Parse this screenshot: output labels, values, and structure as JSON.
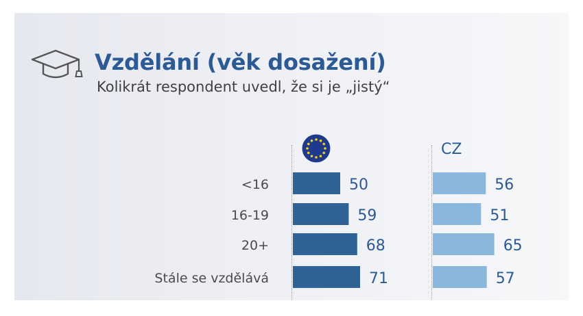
{
  "header": {
    "title": "Vzdělání (věk dosažení)",
    "subtitle": "Kolikrát respondent uvedl, že si je „jistý“",
    "icon": "graduation-cap-icon"
  },
  "columns": {
    "eu_icon": "eu-flag-icon",
    "cz_label": "CZ"
  },
  "colors": {
    "title": "#2c5a94",
    "eu_bar": "#2f6396",
    "cz_bar": "#8ab8dc",
    "value_text": "#2c5a94",
    "category_text": "#4a4a4a"
  },
  "chart_data": {
    "type": "bar",
    "orientation": "horizontal",
    "categories": [
      "<16",
      "16-19",
      "20+",
      "Stále se vzdělává"
    ],
    "series": [
      {
        "values": [
          50,
          59,
          68,
          71
        ]
      },
      {
        "name": "CZ",
        "values": [
          56,
          51,
          65,
          57
        ]
      }
    ],
    "grid": false
  }
}
